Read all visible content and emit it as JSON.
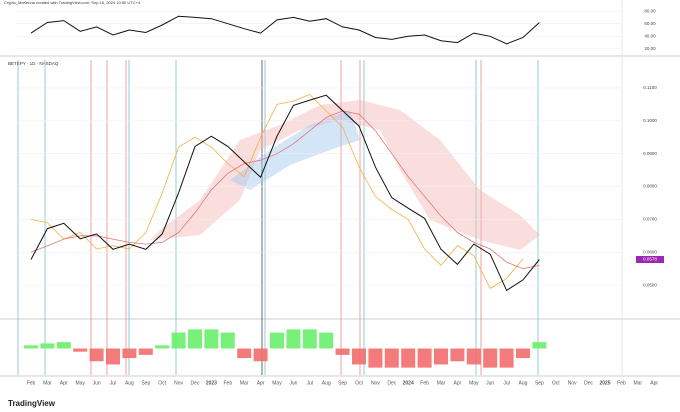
{
  "header": {
    "author_note": "Crypto_McKenna created with TradingView.com, Sep 16, 2024 10:50 UTC+4",
    "symbol": "BETEPY · 1D · NASDAQ"
  },
  "footer": {
    "brand": "TradingView"
  },
  "chart_data": [
    {
      "type": "line",
      "ylim": [
        15,
        85
      ],
      "yticks": [
        {
          "value": 80,
          "label": "80.00"
        },
        {
          "value": 60,
          "label": "60.00"
        },
        {
          "value": 40,
          "label": "40.00"
        },
        {
          "value": 20,
          "label": "20.00"
        }
      ],
      "series": [
        {
          "color": "#111111",
          "values": [
            45,
            62,
            65,
            48,
            55,
            42,
            50,
            46,
            58,
            72,
            70,
            68,
            60,
            52,
            45,
            66,
            70,
            64,
            68,
            55,
            50,
            38,
            35,
            40,
            42,
            33,
            30,
            45,
            40,
            28,
            38,
            62,
            null,
            null,
            null,
            null,
            null,
            null,
            null
          ]
        }
      ]
    },
    {
      "type": "line",
      "ylim": [
        0.04,
        0.1185
      ],
      "grid": true,
      "categories": [
        "Feb",
        "Mar",
        "Apr",
        "May",
        "Jun",
        "Jul",
        "Aug",
        "Sep",
        "Oct",
        "Nov",
        "Dec",
        "2023",
        "Feb",
        "Mar",
        "Apr",
        "May",
        "Jun",
        "Jul",
        "Aug",
        "Sep",
        "Oct",
        "Nov",
        "Dec",
        "2024",
        "Feb",
        "Mar",
        "Apr",
        "May",
        "Jun",
        "Jul",
        "Aug",
        "Sep",
        "Oct",
        "Nov",
        "Dec",
        "2025",
        "Feb",
        "Mar",
        "Apr"
      ],
      "yticks": [
        {
          "value": 0.11,
          "label": "0.1100"
        },
        {
          "value": 0.1,
          "label": "0.1000"
        },
        {
          "value": 0.09,
          "label": "0.0900"
        },
        {
          "value": 0.08,
          "label": "0.0800"
        },
        {
          "value": 0.07,
          "label": "0.0700"
        },
        {
          "value": 0.06,
          "label": "0.0600"
        },
        {
          "value": 0.05,
          "label": "0.0500"
        }
      ],
      "last_price": {
        "value": 0.0578,
        "label": "0.0578"
      },
      "series": [
        {
          "color": "#f5b041",
          "values": [
            0.07,
            0.069,
            0.064,
            0.066,
            0.061,
            0.062,
            0.061,
            0.066,
            0.078,
            0.092,
            0.095,
            0.092,
            0.087,
            0.083,
            0.095,
            0.105,
            0.106,
            0.108,
            0.103,
            0.098,
            0.086,
            0.077,
            0.073,
            0.07,
            0.061,
            0.056,
            0.062,
            0.059,
            0.049,
            0.052,
            0.058,
            null,
            null,
            null,
            null,
            null,
            null,
            null,
            null
          ]
        },
        {
          "color": "#e57373",
          "values": [
            0.06,
            0.062,
            0.064,
            0.065,
            0.065,
            0.064,
            0.063,
            0.0625,
            0.063,
            0.066,
            0.072,
            0.079,
            0.084,
            0.087,
            0.088,
            0.09,
            0.093,
            0.097,
            0.101,
            0.103,
            0.102,
            0.097,
            0.09,
            0.083,
            0.077,
            0.071,
            0.066,
            0.063,
            0.061,
            0.057,
            0.055,
            0.056,
            null,
            null,
            null,
            null,
            null,
            null,
            null
          ]
        },
        {
          "color": "#111111",
          "values": [
            0.0578,
            0.0672,
            0.0688,
            0.0641,
            0.0656,
            0.0609,
            0.0625,
            0.0609,
            0.0656,
            0.0781,
            0.0922,
            0.0953,
            0.0922,
            0.0875,
            0.0828,
            0.0953,
            0.1047,
            0.1063,
            0.1078,
            0.1031,
            0.0984,
            0.0859,
            0.0766,
            0.0734,
            0.0703,
            0.0609,
            0.0563,
            0.0625,
            0.0594,
            0.0484,
            0.0516,
            0.0578,
            null,
            null,
            null,
            null,
            null,
            null,
            null
          ]
        }
      ]
    },
    {
      "type": "bar",
      "ylim": [
        -4,
        4
      ],
      "color_positive": "#69f06b",
      "color_negative": "#f26d6d",
      "values": [
        0.5,
        0.8,
        1,
        -0.5,
        -2,
        -2.5,
        -1.5,
        -1,
        0.5,
        2.5,
        3,
        3,
        2.5,
        -1.5,
        -2,
        2.5,
        3,
        3,
        2.5,
        -1,
        -2.5,
        -3,
        -3,
        -3,
        -3,
        -2.5,
        -2,
        -2.5,
        -3,
        -3,
        -1.5,
        1,
        null,
        null,
        null,
        null,
        null,
        null,
        null
      ]
    }
  ]
}
